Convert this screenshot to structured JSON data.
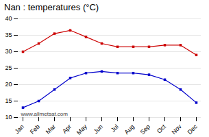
{
  "chart_data": {
    "type": "line",
    "title": "Nan : temperatures (°C)",
    "categories": [
      "Jan",
      "Feb",
      "Mar",
      "Apr",
      "May",
      "Jun",
      "Jul",
      "Aug",
      "Sep",
      "Oct",
      "Nov",
      "Dec"
    ],
    "series": [
      {
        "color": "#cc0000",
        "marker": "square",
        "values": [
          30.0,
          32.5,
          35.5,
          36.5,
          34.5,
          32.5,
          31.5,
          31.5,
          31.5,
          32.0,
          32.0,
          29.0
        ]
      },
      {
        "color": "#0000cc",
        "marker": "square",
        "values": [
          13.0,
          15.0,
          18.5,
          22.0,
          23.5,
          24.0,
          23.5,
          23.5,
          23.0,
          21.5,
          18.5,
          14.5
        ]
      }
    ],
    "ylim": [
      10,
      40
    ],
    "yticks": [
      10,
      15,
      20,
      25,
      30,
      35,
      40
    ],
    "grid": true,
    "annotations": [
      "www.allmetsat.com"
    ]
  }
}
